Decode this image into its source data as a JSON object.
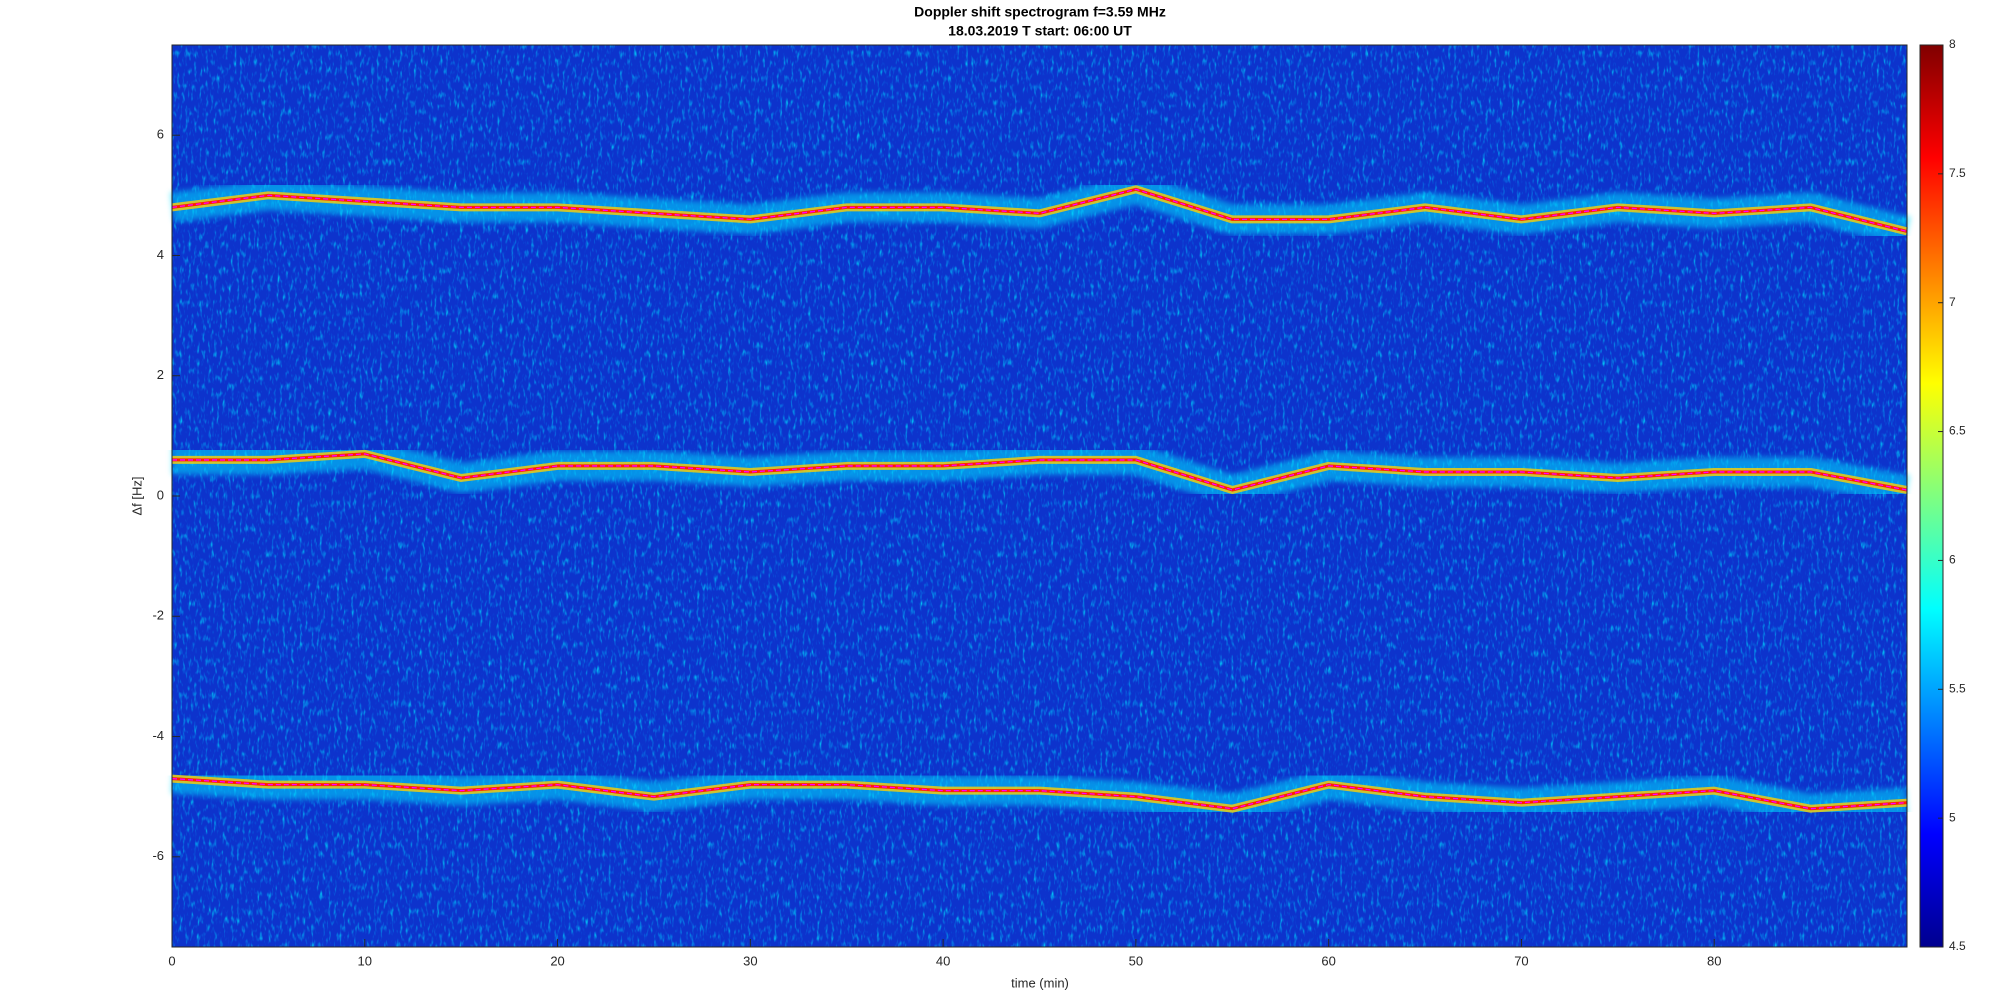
{
  "chart_data": {
    "type": "spectrogram",
    "title": "Doppler shift spectrogram f=3.59 MHz",
    "subtitle": "18.03.2019   T start: 06:00 UT",
    "x_label": "time (min)",
    "y_label": "Δf [Hz]",
    "xlim": [
      0,
      90
    ],
    "xticks": [
      0,
      10,
      20,
      30,
      40,
      50,
      60,
      70,
      80
    ],
    "ylim": [
      -7.5,
      7.5
    ],
    "yticks": [
      -6,
      -4,
      -2,
      0,
      2,
      4,
      6
    ],
    "colormap": "jet",
    "clim": [
      4.5,
      8
    ],
    "cticks": [
      4.5,
      5,
      5.5,
      6,
      6.5,
      7,
      7.5,
      8
    ],
    "x": [
      0,
      5,
      10,
      15,
      20,
      25,
      30,
      35,
      40,
      45,
      50,
      55,
      60,
      65,
      70,
      75,
      80,
      85,
      90
    ],
    "series": [
      {
        "color": "#ff00ff",
        "values": [
          4.8,
          5.0,
          4.9,
          4.8,
          4.8,
          4.7,
          4.6,
          4.8,
          4.8,
          4.7,
          5.1,
          4.6,
          4.6,
          4.8,
          4.6,
          4.8,
          4.7,
          4.8,
          4.4
        ]
      },
      {
        "color": "#ff00ff",
        "values": [
          0.6,
          0.6,
          0.7,
          0.3,
          0.5,
          0.5,
          0.4,
          0.5,
          0.5,
          0.6,
          0.6,
          0.1,
          0.5,
          0.4,
          0.4,
          0.3,
          0.4,
          0.4,
          0.1
        ]
      },
      {
        "color": "#ff00ff",
        "values": [
          -4.7,
          -4.8,
          -4.8,
          -4.9,
          -4.8,
          -5.0,
          -4.8,
          -4.8,
          -4.9,
          -4.9,
          -5.0,
          -5.2,
          -4.8,
          -5.0,
          -5.1,
          -5.0,
          -4.9,
          -5.2,
          -5.1
        ]
      }
    ]
  }
}
